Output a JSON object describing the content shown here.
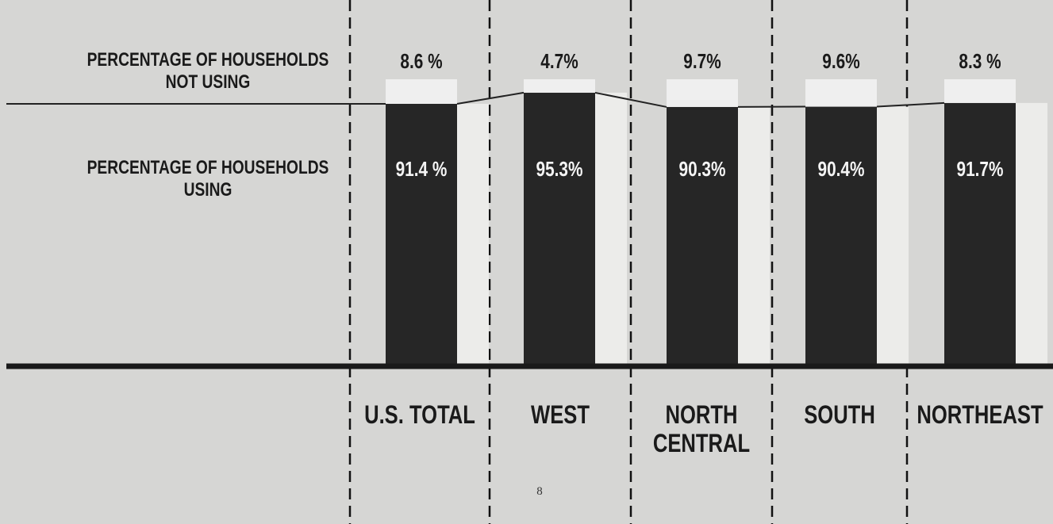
{
  "chart_data": {
    "type": "stacked-bar",
    "categories": [
      "U.S. TOTAL",
      "WEST",
      "NORTH CENTRAL",
      "SOUTH",
      "NORTHEAST"
    ],
    "series": [
      {
        "name": "PERCENTAGE OF HOUSEHOLDS USING",
        "color": "#262626",
        "values": [
          91.4,
          95.3,
          90.3,
          90.4,
          91.7
        ],
        "value_labels": [
          "91.4 %",
          "95.3%",
          "90.3%",
          "90.4%",
          "91.7%"
        ]
      },
      {
        "name": "PERCENTAGE OF HOUSEHOLDS NOT USING",
        "color": "#efefef",
        "values": [
          8.6,
          4.7,
          9.7,
          9.6,
          8.3
        ],
        "value_labels": [
          "8.6 %",
          "4.7%",
          "9.7%",
          "9.6%",
          "8.3 %"
        ]
      }
    ]
  },
  "page_number": "8"
}
